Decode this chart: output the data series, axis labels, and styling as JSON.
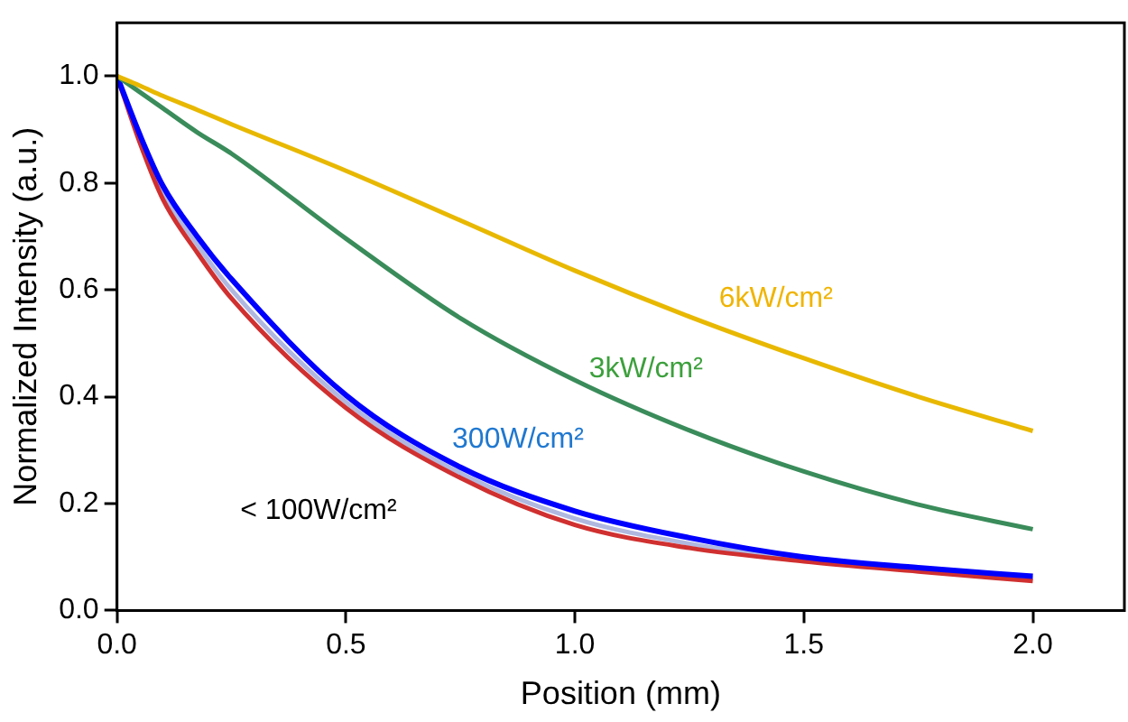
{
  "chart_data": {
    "type": "line",
    "xlabel": "Position (mm)",
    "ylabel": "Normalized Intensity (a.u.)",
    "xlim": [
      0,
      2.2
    ],
    "ylim": [
      0,
      1.1
    ],
    "xticks": [
      {
        "value": 0,
        "label": "0.0"
      },
      {
        "value": 0.5,
        "label": "0.5"
      },
      {
        "value": 1,
        "label": "1.0"
      },
      {
        "value": 1.5,
        "label": "1.5"
      },
      {
        "value": 2,
        "label": "2.0"
      }
    ],
    "yticks": [
      {
        "value": 0,
        "label": "0.0"
      },
      {
        "value": 0.2,
        "label": "0.2"
      },
      {
        "value": 0.4,
        "label": "0.4"
      },
      {
        "value": 0.6,
        "label": "0.6"
      },
      {
        "value": 0.8,
        "label": "0.8"
      },
      {
        "value": 1,
        "label": "1.0"
      }
    ],
    "grid": false,
    "legend": false,
    "marker": "none",
    "line_style": "solid",
    "x": [
      0,
      0.05,
      0.1,
      0.175,
      0.25,
      0.5,
      0.75,
      1,
      1.25,
      1.5,
      1.75,
      2
    ],
    "series": [
      {
        "name": "6kW/cm²",
        "color": "#e8b800",
        "values": [
          1,
          0.982,
          0.963,
          0.937,
          0.91,
          0.823,
          0.73,
          0.636,
          0.55,
          0.472,
          0.4,
          0.336
        ]
      },
      {
        "name": "3kW/cm²",
        "color": "#3a8c5a",
        "values": [
          1,
          0.97,
          0.94,
          0.895,
          0.855,
          0.696,
          0.547,
          0.431,
          0.337,
          0.26,
          0.198,
          0.152
        ]
      },
      {
        "name": "300W/cm²",
        "color": "#0000ff",
        "values": [
          1,
          0.89,
          0.795,
          0.7,
          0.62,
          0.403,
          0.268,
          0.186,
          0.136,
          0.1,
          0.08,
          0.064
        ]
      },
      {
        "name": "< 100W/cm²",
        "color": "#d03030",
        "values": [
          1,
          0.875,
          0.77,
          0.67,
          0.584,
          0.379,
          0.248,
          0.16,
          0.117,
          0.092,
          0.073,
          0.055
        ]
      },
      {
        "color": "#b0b8e0",
        "values": [
          1,
          0.883,
          0.783,
          0.685,
          0.6,
          0.39,
          0.257,
          0.172,
          0.125,
          0.096,
          0.076,
          0.06
        ]
      }
    ]
  }
}
